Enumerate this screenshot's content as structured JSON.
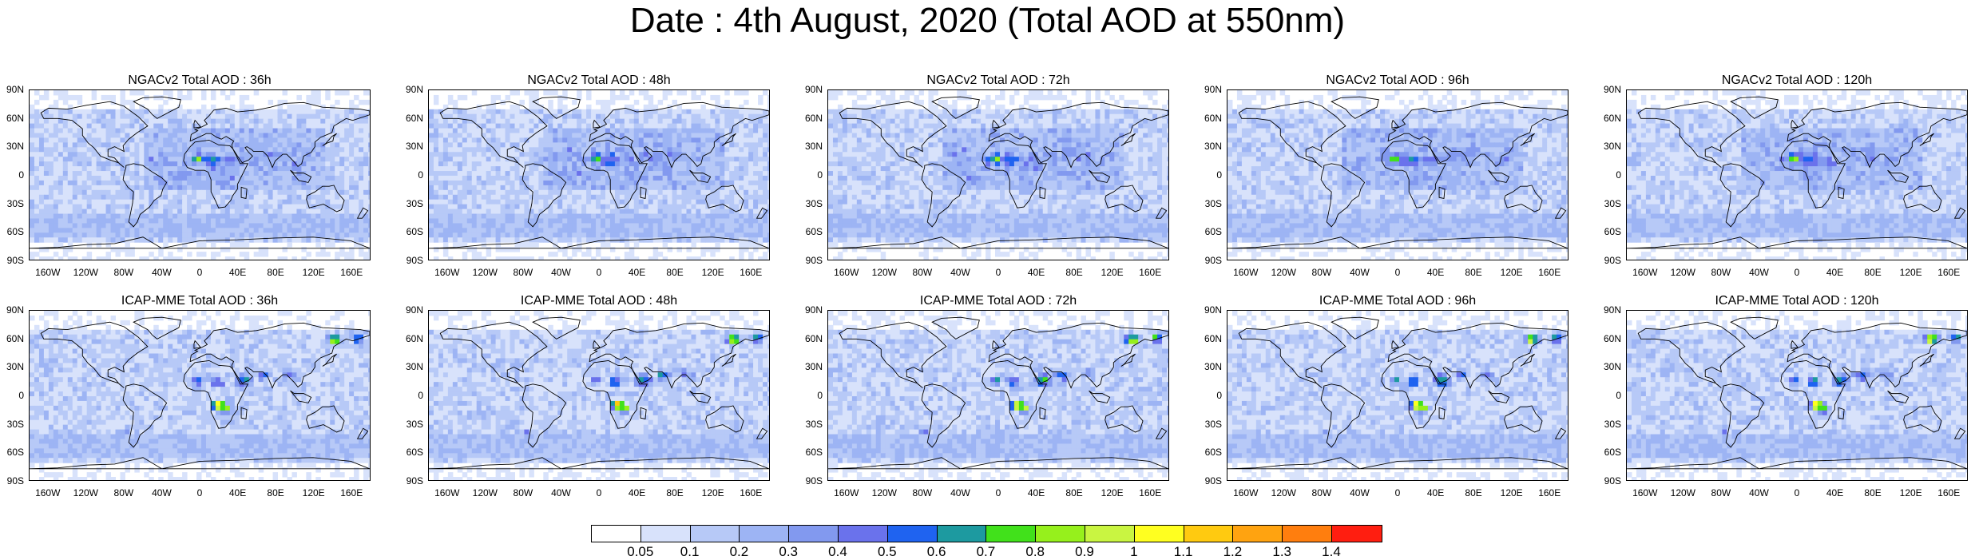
{
  "title": "Date : 4th August, 2020 (Total AOD at 550nm)",
  "lat_ticks": [
    "90N",
    "60N",
    "30N",
    "0",
    "30S",
    "60S",
    "90S"
  ],
  "lon_ticks": [
    "160W",
    "120W",
    "80W",
    "40W",
    "0",
    "40E",
    "80E",
    "120E",
    "160E"
  ],
  "panels": [
    {
      "title": "NGACv2 Total AOD : 36h",
      "model": "NGACv2",
      "lead": "36h"
    },
    {
      "title": "NGACv2 Total AOD : 48h",
      "model": "NGACv2",
      "lead": "48h"
    },
    {
      "title": "NGACv2 Total AOD : 72h",
      "model": "NGACv2",
      "lead": "72h"
    },
    {
      "title": "NGACv2 Total AOD : 96h",
      "model": "NGACv2",
      "lead": "96h"
    },
    {
      "title": "NGACv2 Total AOD : 120h",
      "model": "NGACv2",
      "lead": "120h"
    },
    {
      "title": "ICAP-MME Total AOD : 36h",
      "model": "ICAP-MME",
      "lead": "36h"
    },
    {
      "title": "ICAP-MME Total AOD : 48h",
      "model": "ICAP-MME",
      "lead": "48h"
    },
    {
      "title": "ICAP-MME Total AOD : 72h",
      "model": "ICAP-MME",
      "lead": "72h"
    },
    {
      "title": "ICAP-MME Total AOD : 96h",
      "model": "ICAP-MME",
      "lead": "96h"
    },
    {
      "title": "ICAP-MME Total AOD : 120h",
      "model": "ICAP-MME",
      "lead": "120h"
    }
  ],
  "legend": {
    "labels": [
      "0.05",
      "0.1",
      "0.2",
      "0.3",
      "0.4",
      "0.5",
      "0.6",
      "0.7",
      "0.8",
      "0.9",
      "1",
      "1.1",
      "1.2",
      "1.3",
      "1.4"
    ],
    "colors": [
      "#ffffff",
      "#d8e2fb",
      "#b7c9f7",
      "#9db4f4",
      "#8299ef",
      "#6a72ec",
      "#1f63f0",
      "#1d9aa0",
      "#41e11b",
      "#96f01c",
      "#c9f541",
      "#ffff20",
      "#ffca10",
      "#ffa310",
      "#ff7e0e",
      "#ff1e10"
    ]
  }
}
